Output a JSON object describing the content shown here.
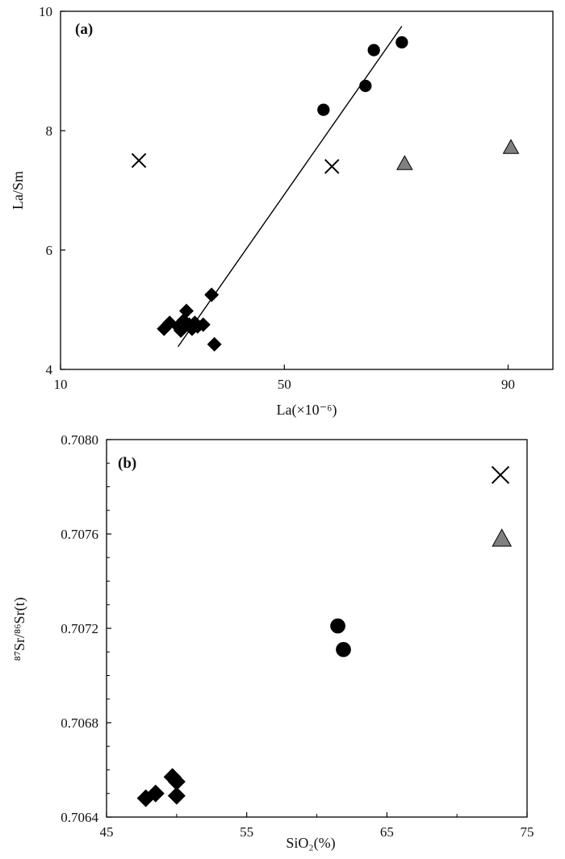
{
  "chart_data": [
    {
      "type": "scatter",
      "panel_label": "(a)",
      "title": "",
      "xlabel": "La(×10⁻⁶)",
      "ylabel": "La/Sm",
      "xlim": [
        10,
        98
      ],
      "ylim": [
        4,
        10
      ],
      "xticks": [
        10,
        50,
        90
      ],
      "yticks": [
        4,
        6,
        8,
        10
      ],
      "grid": false,
      "legend": "none",
      "series": [
        {
          "marker": "circle",
          "color": "#000000",
          "points": [
            [
              57,
              8.35
            ],
            [
              64.5,
              8.75
            ],
            [
              66,
              9.35
            ],
            [
              71,
              9.48
            ]
          ]
        },
        {
          "marker": "diamond",
          "color": "#000000",
          "points": [
            [
              28.5,
              4.68
            ],
            [
              29.5,
              4.78
            ],
            [
              31,
              4.72
            ],
            [
              31.5,
              4.65
            ],
            [
              32,
              4.82
            ],
            [
              32.5,
              4.98
            ],
            [
              33,
              4.75
            ],
            [
              33.5,
              4.68
            ],
            [
              34,
              4.78
            ],
            [
              34.5,
              4.72
            ],
            [
              35.5,
              4.75
            ],
            [
              37,
              5.25
            ],
            [
              37.5,
              4.42
            ]
          ]
        },
        {
          "marker": "x",
          "color": "#000000",
          "points": [
            [
              24,
              7.5
            ],
            [
              58.5,
              7.4
            ]
          ]
        },
        {
          "marker": "triangle",
          "color": "#808080",
          "points": [
            [
              71.5,
              7.45
            ],
            [
              90.5,
              7.72
            ]
          ]
        }
      ],
      "fit_line": [
        [
          31,
          4.38
        ],
        [
          71,
          9.75
        ]
      ]
    },
    {
      "type": "scatter",
      "panel_label": "(b)",
      "title": "",
      "xlabel": "SiO₂(%)",
      "ylabel": "⁸⁷Sr/⁸⁶Sr(t)",
      "xlim": [
        45,
        75
      ],
      "ylim": [
        0.7064,
        0.708
      ],
      "xticks": [
        45,
        55,
        65,
        75
      ],
      "xtick_labels": [
        "45",
        "55",
        "65",
        "75"
      ],
      "yticks": [
        0.7064,
        0.7068,
        0.7072,
        0.7076,
        0.708
      ],
      "ytick_labels": [
        "0.7064",
        "0.7068",
        "0.7072",
        "0.7076",
        "0.7080"
      ],
      "grid": false,
      "legend": "none",
      "series": [
        {
          "marker": "circle",
          "color": "#000000",
          "points": [
            [
              61.5,
              0.70721
            ],
            [
              61.9,
              0.70711
            ]
          ]
        },
        {
          "marker": "diamond",
          "color": "#000000",
          "points": [
            [
              47.8,
              0.70648
            ],
            [
              48.5,
              0.7065
            ],
            [
              49.7,
              0.70657
            ],
            [
              50,
              0.70655
            ],
            [
              50,
              0.70649
            ]
          ]
        },
        {
          "marker": "x",
          "color": "#000000",
          "points": [
            [
              73.1,
              0.70785
            ]
          ]
        },
        {
          "marker": "triangle",
          "color": "#808080",
          "points": [
            [
              73.2,
              0.70758
            ]
          ]
        }
      ]
    }
  ]
}
